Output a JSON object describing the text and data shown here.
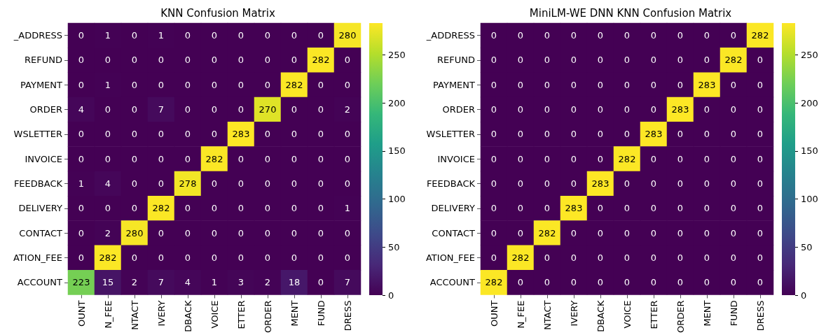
{
  "chart_data": [
    {
      "type": "heatmap",
      "title": "KNN Confusion Matrix",
      "categories": [
        "OUNT",
        "N_FEE",
        "NTACT",
        "IVERY",
        "DBACK",
        "VOICE",
        "ETTER",
        "ORDER",
        "MENT",
        "FUND",
        "DRESS"
      ],
      "y_categories": [
        "_ADDRESS",
        "REFUND",
        "PAYMENT",
        "ORDER",
        "WSLETTER",
        "INVOICE",
        "FEEDBACK",
        "DELIVERY",
        "CONTACT",
        "ATION_FEE",
        "ACCOUNT"
      ],
      "cells": [
        [
          0,
          1,
          0,
          1,
          0,
          0,
          0,
          0,
          0,
          0,
          280
        ],
        [
          0,
          0,
          0,
          0,
          0,
          0,
          0,
          0,
          0,
          282,
          0
        ],
        [
          0,
          1,
          0,
          0,
          0,
          0,
          0,
          0,
          282,
          0,
          0
        ],
        [
          4,
          0,
          0,
          7,
          0,
          0,
          0,
          270,
          0,
          0,
          2
        ],
        [
          0,
          0,
          0,
          0,
          0,
          0,
          283,
          0,
          0,
          0,
          0
        ],
        [
          0,
          0,
          0,
          0,
          0,
          282,
          0,
          0,
          0,
          0,
          0
        ],
        [
          1,
          4,
          0,
          0,
          278,
          0,
          0,
          0,
          0,
          0,
          0
        ],
        [
          0,
          0,
          0,
          282,
          0,
          0,
          0,
          0,
          0,
          0,
          1
        ],
        [
          0,
          2,
          280,
          0,
          0,
          0,
          0,
          0,
          0,
          0,
          0
        ],
        [
          0,
          282,
          0,
          0,
          0,
          0,
          0,
          0,
          0,
          0,
          0
        ],
        [
          223,
          15,
          2,
          7,
          4,
          1,
          3,
          2,
          18,
          0,
          7
        ]
      ],
      "clim": [
        0,
        283
      ],
      "cticks": [
        0,
        50,
        100,
        150,
        200,
        250
      ],
      "data_labels": true
    },
    {
      "type": "heatmap",
      "title": "MiniLM-WE DNN KNN Confusion Matrix",
      "categories": [
        "OUNT",
        "N_FEE",
        "NTACT",
        "IVERY",
        "DBACK",
        "VOICE",
        "ETTER",
        "ORDER",
        "MENT",
        "FUND",
        "DRESS"
      ],
      "y_categories": [
        "_ADDRESS",
        "REFUND",
        "PAYMENT",
        "ORDER",
        "WSLETTER",
        "INVOICE",
        "FEEDBACK",
        "DELIVERY",
        "CONTACT",
        "ATION_FEE",
        "ACCOUNT"
      ],
      "cells": [
        [
          0,
          0,
          0,
          0,
          0,
          0,
          0,
          0,
          0,
          0,
          282
        ],
        [
          0,
          0,
          0,
          0,
          0,
          0,
          0,
          0,
          0,
          282,
          0
        ],
        [
          0,
          0,
          0,
          0,
          0,
          0,
          0,
          0,
          283,
          0,
          0
        ],
        [
          0,
          0,
          0,
          0,
          0,
          0,
          0,
          283,
          0,
          0,
          0
        ],
        [
          0,
          0,
          0,
          0,
          0,
          0,
          283,
          0,
          0,
          0,
          0
        ],
        [
          0,
          0,
          0,
          0,
          0,
          282,
          0,
          0,
          0,
          0,
          0
        ],
        [
          0,
          0,
          0,
          0,
          283,
          0,
          0,
          0,
          0,
          0,
          0
        ],
        [
          0,
          0,
          0,
          283,
          0,
          0,
          0,
          0,
          0,
          0,
          0
        ],
        [
          0,
          0,
          282,
          0,
          0,
          0,
          0,
          0,
          0,
          0,
          0
        ],
        [
          0,
          282,
          0,
          0,
          0,
          0,
          0,
          0,
          0,
          0,
          0
        ],
        [
          282,
          0,
          0,
          0,
          0,
          0,
          0,
          0,
          0,
          0,
          0
        ]
      ],
      "clim": [
        0,
        283
      ],
      "cticks": [
        0,
        50,
        100,
        150,
        200,
        250
      ],
      "data_labels": true
    }
  ]
}
